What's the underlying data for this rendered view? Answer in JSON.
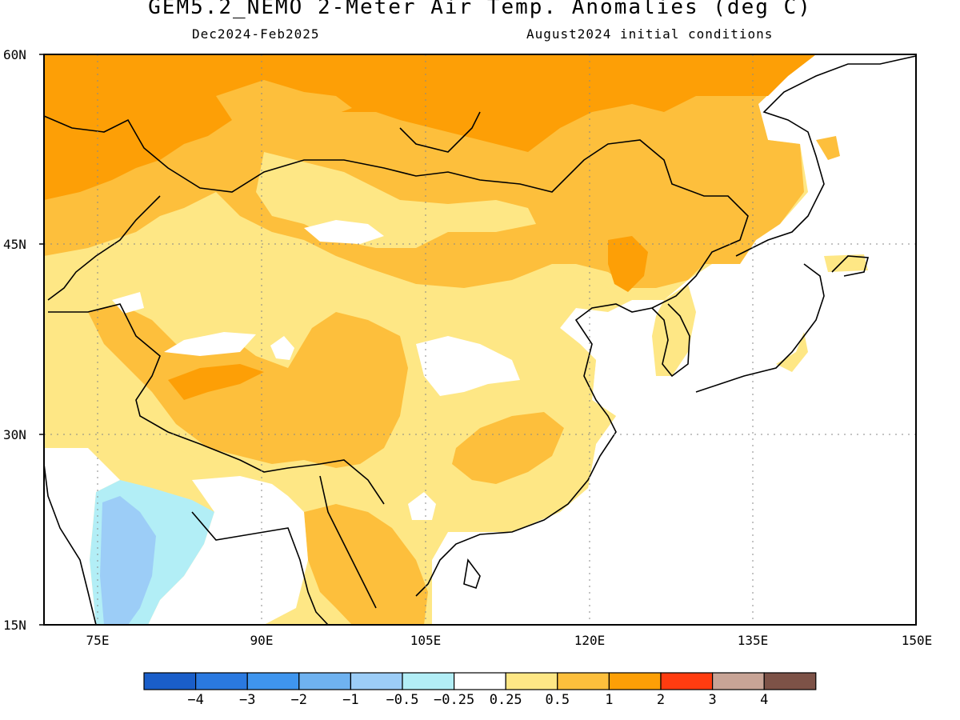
{
  "title": "GEM5.2_NEMO 2-Meter Air Temp. Anomalies (deg C)",
  "subtitle_left": "Dec2024-Feb2025",
  "subtitle_right": "August2024 initial conditions",
  "lat_labels": [
    "60N",
    "45N",
    "30N",
    "15N"
  ],
  "lon_labels": [
    "75E",
    "90E",
    "105E",
    "120E",
    "135E",
    "150E"
  ],
  "colorbar": {
    "colors": [
      "#1a5ec9",
      "#2a79e0",
      "#3f95ee",
      "#6fb2f0",
      "#9ccdf7",
      "#b2eef6",
      "#ffffff",
      "#fee785",
      "#fdbf3c",
      "#fd9f06",
      "#ff3c10",
      "#c8a496",
      "#7d5247"
    ],
    "labels": [
      "−4",
      "−3",
      "−2",
      "−1",
      "−0.5",
      "−0.25",
      "0.25",
      "0.5",
      "1",
      "2",
      "3",
      "4"
    ]
  },
  "palette": {
    "warm_strong": "#fd9f06",
    "warm_mid": "#fdbf3c",
    "warm_light": "#fee785",
    "cool_light": "#b2eef6",
    "cool_mid": "#9ccdf7",
    "neutral": "#ffffff"
  }
}
